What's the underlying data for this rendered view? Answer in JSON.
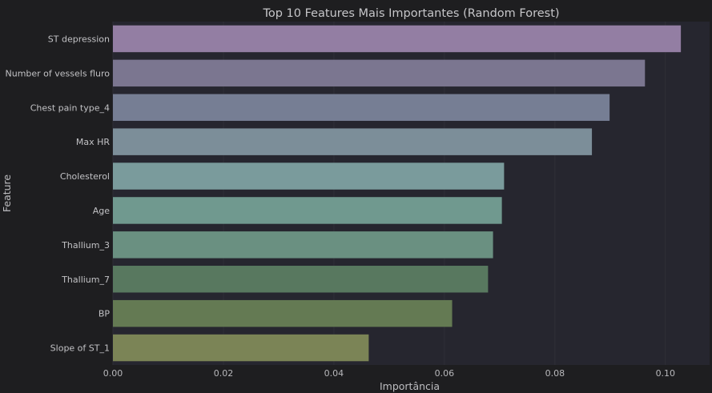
{
  "chart_data": {
    "type": "bar",
    "orientation": "horizontal",
    "title": "Top 10 Features Mais Importantes (Random Forest)",
    "xlabel": "Importância",
    "ylabel": "Feature",
    "categories": [
      "ST depression",
      "Number of vessels fluro",
      "Chest pain type_4",
      "Max HR",
      "Cholesterol",
      "Age",
      "Thallium_3",
      "Thallium_7",
      "BP",
      "Slope of ST_1"
    ],
    "values": [
      0.1028,
      0.0963,
      0.0899,
      0.0867,
      0.0708,
      0.0704,
      0.0688,
      0.0679,
      0.0614,
      0.0463
    ],
    "colors": [
      "#937ea3",
      "#7b7690",
      "#767e94",
      "#7c8e99",
      "#7a9b9c",
      "#70998f",
      "#6a9081",
      "#58785f",
      "#647a53",
      "#7b8456"
    ],
    "xlim": [
      0,
      0.108
    ],
    "xticks": [
      0.0,
      0.02,
      0.04,
      0.06,
      0.08,
      0.1
    ],
    "xtick_labels": [
      "0.00",
      "0.02",
      "0.04",
      "0.06",
      "0.08",
      "0.10"
    ],
    "grid": true,
    "legend": "none",
    "theme": {
      "background": "#1e1e20",
      "plot_background": "#26262f",
      "grid_color": "#2f2f37"
    }
  }
}
